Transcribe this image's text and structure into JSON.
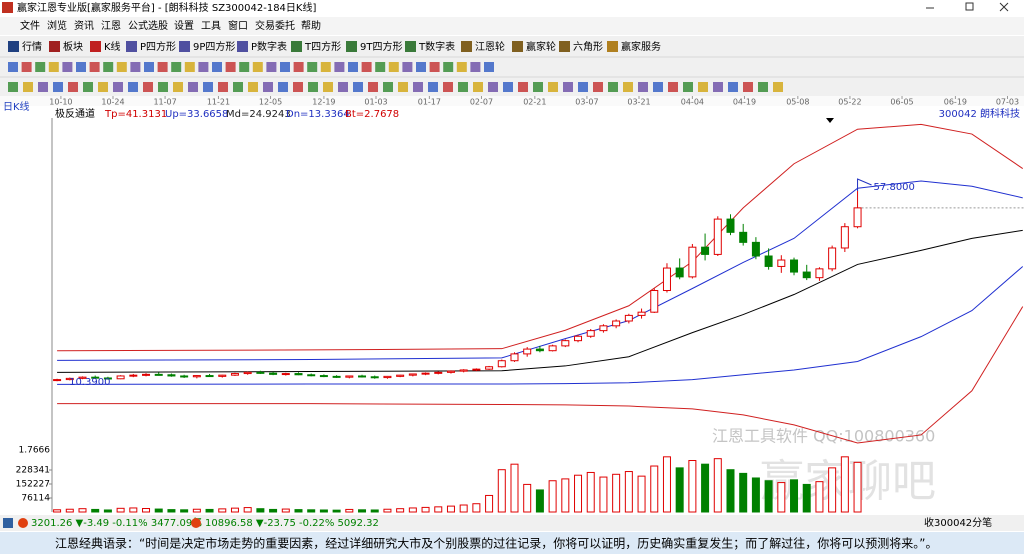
{
  "window": {
    "title": "赢家江恩专业版[赢家服务平台] - [朗科科技 SZ300042-184日K线]"
  },
  "menu": [
    "文件",
    "浏览",
    "资讯",
    "江恩",
    "公式选股",
    "设置",
    "工具",
    "窗口",
    "交易委托",
    "帮助"
  ],
  "toolbar": [
    "行情",
    "板块",
    "K线",
    "P四方形",
    "9P四方形",
    "P数字表",
    "T四方形",
    "9T四方形",
    "T数字表",
    "江恩轮",
    "赢家轮",
    "六角形",
    "赢家服务"
  ],
  "chart_data": {
    "type": "candlestick",
    "period_label": "日K线",
    "indicator": {
      "name": "极反通道",
      "tp": "Tp=41.3131",
      "up": "Up=33.6658",
      "md": "Md=24.9243",
      "dn": "Dn=13.3364",
      "bt": "Bt=2.7678"
    },
    "stock_label": "300042 朗科科技",
    "xlim": [
      -0.4,
      76.1
    ],
    "xticks": [
      {
        "value": 0.3,
        "label": "10-10"
      },
      {
        "value": 4.4,
        "label": "10-24"
      },
      {
        "value": 8.5,
        "label": "11-07"
      },
      {
        "value": 12.7,
        "label": "11-21"
      },
      {
        "value": 16.8,
        "label": "12-05"
      },
      {
        "value": 21.0,
        "label": "12-19"
      },
      {
        "value": 25.1,
        "label": "01-03"
      },
      {
        "value": 29.3,
        "label": "01-17"
      },
      {
        "value": 33.4,
        "label": "02-07"
      },
      {
        "value": 37.6,
        "label": "02-21"
      },
      {
        "value": 41.7,
        "label": "03-07"
      },
      {
        "value": 45.8,
        "label": "03-21"
      },
      {
        "value": 50.0,
        "label": "04-04"
      },
      {
        "value": 54.1,
        "label": "04-19"
      },
      {
        "value": 58.3,
        "label": "05-08"
      },
      {
        "value": 62.4,
        "label": "05-22"
      },
      {
        "value": 66.5,
        "label": "06-05"
      },
      {
        "value": 70.7,
        "label": "06-19"
      },
      {
        "value": 74.8,
        "label": "07-03"
      }
    ],
    "ylim": [
      -8,
      76
    ],
    "up_color": "#e00000",
    "down_color": "#008000",
    "x": [
      0,
      1,
      2,
      3,
      4,
      5,
      6,
      7,
      8,
      9,
      10,
      11,
      12,
      13,
      14,
      15,
      16,
      17,
      18,
      19,
      20,
      21,
      22,
      23,
      24,
      25,
      26,
      27,
      28,
      29,
      30,
      31,
      32,
      33,
      34,
      35,
      36,
      37,
      38,
      39,
      40,
      41,
      42,
      43,
      44,
      45,
      46,
      47,
      48,
      49,
      50,
      51,
      52,
      53,
      54,
      55,
      56,
      57,
      58,
      59,
      60,
      61,
      62,
      63
    ],
    "candles": [
      [
        10.6,
        11.0,
        10.39,
        10.8
      ],
      [
        10.8,
        11.3,
        10.6,
        11.1
      ],
      [
        11.1,
        11.6,
        10.9,
        11.4
      ],
      [
        11.4,
        11.8,
        11.0,
        11.2
      ],
      [
        11.2,
        11.5,
        10.8,
        11.0
      ],
      [
        11.0,
        11.9,
        10.9,
        11.7
      ],
      [
        11.7,
        12.2,
        11.4,
        11.9
      ],
      [
        11.9,
        12.4,
        11.6,
        12.1
      ],
      [
        12.1,
        12.6,
        11.8,
        12.0
      ],
      [
        12.0,
        12.3,
        11.5,
        11.7
      ],
      [
        11.7,
        12.0,
        11.2,
        11.5
      ],
      [
        11.5,
        11.9,
        11.1,
        11.8
      ],
      [
        11.8,
        12.2,
        11.5,
        11.6
      ],
      [
        11.6,
        12.0,
        11.3,
        11.9
      ],
      [
        11.9,
        12.5,
        11.7,
        12.3
      ],
      [
        12.3,
        12.8,
        12.0,
        12.6
      ],
      [
        12.6,
        13.0,
        12.2,
        12.4
      ],
      [
        12.4,
        12.7,
        11.9,
        12.1
      ],
      [
        12.1,
        12.5,
        11.8,
        12.3
      ],
      [
        12.3,
        12.6,
        11.9,
        12.0
      ],
      [
        12.0,
        12.3,
        11.6,
        11.8
      ],
      [
        11.8,
        12.1,
        11.4,
        11.6
      ],
      [
        11.6,
        11.9,
        11.2,
        11.4
      ],
      [
        11.4,
        11.8,
        11.1,
        11.7
      ],
      [
        11.7,
        12.0,
        11.3,
        11.5
      ],
      [
        11.5,
        11.8,
        11.0,
        11.3
      ],
      [
        11.3,
        11.7,
        11.0,
        11.6
      ],
      [
        11.6,
        12.0,
        11.4,
        11.9
      ],
      [
        11.9,
        12.3,
        11.6,
        12.2
      ],
      [
        12.2,
        12.6,
        11.9,
        12.4
      ],
      [
        12.4,
        12.8,
        12.1,
        12.6
      ],
      [
        12.6,
        13.1,
        12.3,
        12.9
      ],
      [
        12.9,
        13.4,
        12.6,
        13.2
      ],
      [
        13.2,
        13.6,
        12.9,
        13.4
      ],
      [
        13.4,
        14.2,
        13.2,
        14.0
      ],
      [
        14.0,
        15.8,
        13.8,
        15.5
      ],
      [
        15.5,
        17.6,
        15.2,
        17.2
      ],
      [
        17.2,
        18.9,
        16.5,
        18.4
      ],
      [
        18.4,
        19.2,
        17.6,
        18.0
      ],
      [
        18.0,
        19.5,
        17.8,
        19.2
      ],
      [
        19.2,
        20.8,
        18.9,
        20.5
      ],
      [
        20.5,
        22.0,
        20.1,
        21.6
      ],
      [
        21.6,
        23.4,
        21.2,
        23.0
      ],
      [
        23.0,
        24.6,
        22.5,
        24.2
      ],
      [
        24.2,
        25.8,
        23.6,
        25.4
      ],
      [
        25.4,
        27.2,
        24.8,
        26.8
      ],
      [
        26.8,
        28.5,
        26.0,
        27.6
      ],
      [
        27.6,
        33.5,
        27.4,
        33.0
      ],
      [
        33.0,
        39.8,
        32.5,
        38.6
      ],
      [
        38.6,
        41.0,
        35.8,
        36.4
      ],
      [
        36.4,
        44.6,
        36.0,
        43.8
      ],
      [
        43.8,
        47.2,
        40.5,
        42.0
      ],
      [
        42.0,
        51.5,
        41.6,
        50.8
      ],
      [
        50.8,
        52.0,
        46.8,
        47.5
      ],
      [
        47.5,
        49.6,
        44.2,
        45.0
      ],
      [
        45.0,
        46.3,
        40.8,
        41.6
      ],
      [
        41.6,
        43.5,
        38.2,
        39.0
      ],
      [
        39.0,
        41.8,
        37.4,
        40.6
      ],
      [
        40.6,
        41.2,
        36.8,
        37.6
      ],
      [
        37.6,
        39.4,
        35.6,
        36.2
      ],
      [
        36.2,
        38.8,
        35.4,
        38.4
      ],
      [
        38.4,
        44.2,
        37.8,
        43.6
      ],
      [
        43.6,
        49.8,
        42.6,
        48.9
      ],
      [
        48.9,
        57.8,
        48.5,
        53.6
      ]
    ],
    "series": [
      {
        "color": "#d02020",
        "x": [
          0,
          20,
          35,
          40,
          45,
          50,
          54,
          58,
          63,
          68,
          72,
          76
        ],
        "values": [
          18.0,
          18.2,
          18.5,
          23.1,
          29.2,
          40.2,
          53.6,
          64.6,
          73.2,
          74.4,
          72,
          63.4
        ]
      },
      {
        "color": "#d02020",
        "x": [
          0,
          20,
          35,
          40,
          45,
          50,
          54,
          58,
          63,
          68,
          72,
          76
        ],
        "values": [
          4.8,
          4.8,
          4.6,
          4.5,
          4.2,
          3.5,
          2.0,
          -0.5,
          -5.0,
          -3.0,
          8.0,
          29.0
        ]
      },
      {
        "color": "#2030d0",
        "x": [
          0,
          20,
          35,
          40,
          45,
          50,
          54,
          58,
          63,
          68,
          72,
          76
        ],
        "values": [
          15.6,
          15.8,
          16.2,
          21.0,
          25.5,
          33.5,
          40.0,
          46.0,
          58.5,
          60.3,
          59.0,
          56.1
        ]
      },
      {
        "color": "#2030d0",
        "x": [
          0,
          20,
          35,
          40,
          45,
          50,
          54,
          58,
          63,
          68,
          72,
          76
        ],
        "values": [
          9.6,
          9.7,
          9.7,
          9.8,
          10.0,
          10.8,
          12.0,
          13.2,
          15.3,
          21.5,
          28.0,
          39.0
        ]
      },
      {
        "color": "#000000",
        "x": [
          0,
          20,
          35,
          40,
          45,
          50,
          54,
          58,
          63,
          68,
          72,
          76
        ],
        "values": [
          12.6,
          12.8,
          13.0,
          14.2,
          16.5,
          22.5,
          27.0,
          32.0,
          39.5,
          43.0,
          46.0,
          48.0
        ]
      }
    ],
    "high_label": "57.8000",
    "low_label": "10.3900",
    "volume": {
      "top_label": "1.7666",
      "ylim": [
        0,
        348000
      ],
      "yticks": [
        76114,
        152227,
        228341
      ],
      "values": [
        12000,
        15000,
        18000,
        14000,
        11000,
        20000,
        22000,
        19000,
        16000,
        13000,
        12000,
        15000,
        14000,
        17000,
        21000,
        24000,
        18000,
        14000,
        16000,
        13000,
        12000,
        11000,
        10000,
        14000,
        12000,
        11000,
        15000,
        18000,
        22000,
        25000,
        28000,
        32000,
        38000,
        45000,
        90000,
        230000,
        260000,
        150000,
        120000,
        170000,
        180000,
        200000,
        215000,
        190000,
        205000,
        220000,
        195000,
        250000,
        300000,
        240000,
        280000,
        260000,
        290000,
        230000,
        210000,
        185000,
        170000,
        160000,
        175000,
        150000,
        165000,
        240000,
        300000,
        270000
      ]
    },
    "watermark": "江恩工具软件 QQ:100800360",
    "watermark2": "赢家聊吧"
  },
  "status_bar": {
    "index1": "3201.26 ▼-3.49 -0.11% 3477.09亿",
    "index2": "10896.58 ▼-23.75 -0.22% 5092.32",
    "right": "收300042分笔"
  },
  "footer": "江恩经典语录：“时间是决定市场走势的重要因素，经过详细研究大市及个别股票的过往记录，你将可以证明，历史确实重复发生；而了解过往，你将可以预测将来。”。"
}
